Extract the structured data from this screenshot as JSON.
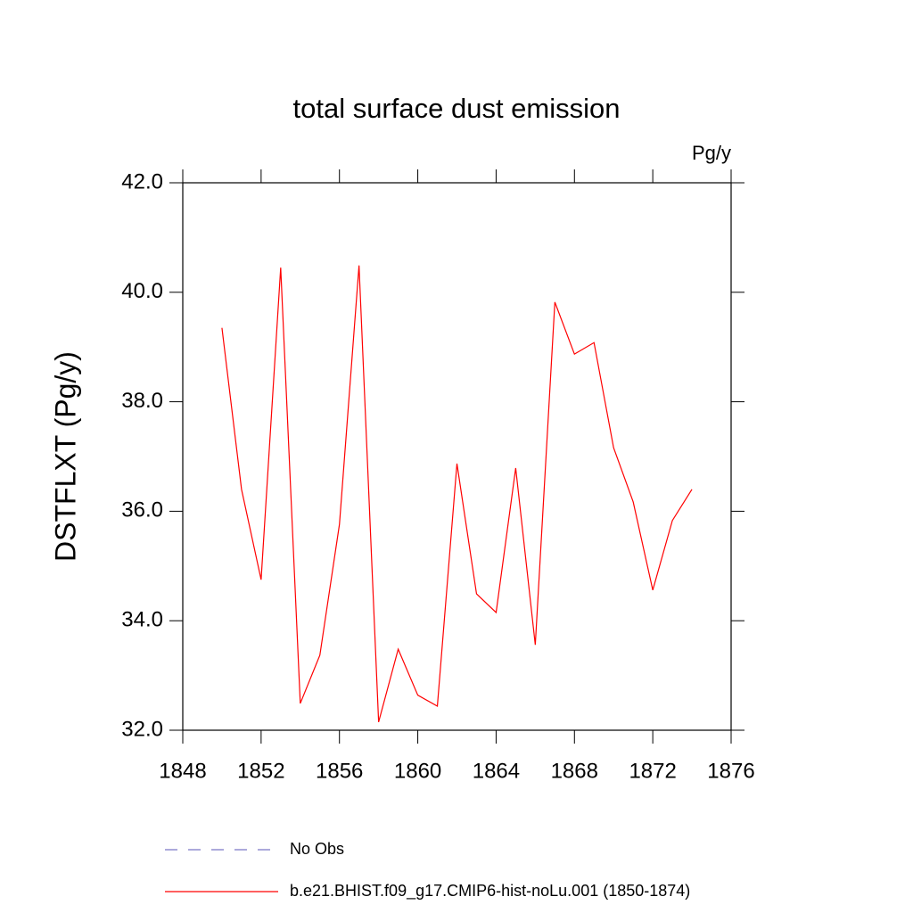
{
  "chart_data": {
    "type": "line",
    "title": "total surface dust emission",
    "units": "Pg/y",
    "y_label": "DSTFLXT  (Pg/y)",
    "x": [
      1850,
      1851,
      1852,
      1853,
      1854,
      1855,
      1856,
      1857,
      1858,
      1859,
      1860,
      1861,
      1862,
      1863,
      1864,
      1865,
      1866,
      1867,
      1868,
      1869,
      1870,
      1871,
      1872,
      1873,
      1874
    ],
    "series": [
      {
        "name": "No Obs",
        "color": "#7a78c8",
        "dashed": true,
        "values": [
          null,
          null,
          null,
          null,
          null,
          null,
          null,
          null,
          null,
          null,
          null,
          null,
          null,
          null,
          null,
          null,
          null,
          null,
          null,
          null,
          null,
          null,
          null,
          null,
          null
        ]
      },
      {
        "name": "b.e21.BHIST.f09_g17.CMIP6-hist-noLu.001 (1850-1874)",
        "color": "#ff0000",
        "dashed": false,
        "values": [
          39.35,
          36.4,
          34.75,
          40.45,
          32.49,
          33.37,
          35.76,
          40.49,
          32.15,
          33.48,
          32.64,
          32.44,
          36.87,
          34.49,
          34.15,
          36.79,
          33.56,
          39.82,
          38.87,
          39.08,
          37.16,
          36.17,
          34.56,
          35.83,
          36.4
        ]
      }
    ],
    "xlim": [
      1848,
      1876
    ],
    "xticks": [
      1848,
      1852,
      1856,
      1860,
      1864,
      1868,
      1872,
      1876
    ],
    "ylim": [
      32,
      42
    ],
    "yticks": [
      {
        "value": 32,
        "label": "32.0"
      },
      {
        "value": 34,
        "label": "34.0"
      },
      {
        "value": 36,
        "label": "36.0"
      },
      {
        "value": 38,
        "label": "38.0"
      },
      {
        "value": 40,
        "label": "40.0"
      },
      {
        "value": 42,
        "label": "42.0"
      }
    ],
    "grid": false
  }
}
